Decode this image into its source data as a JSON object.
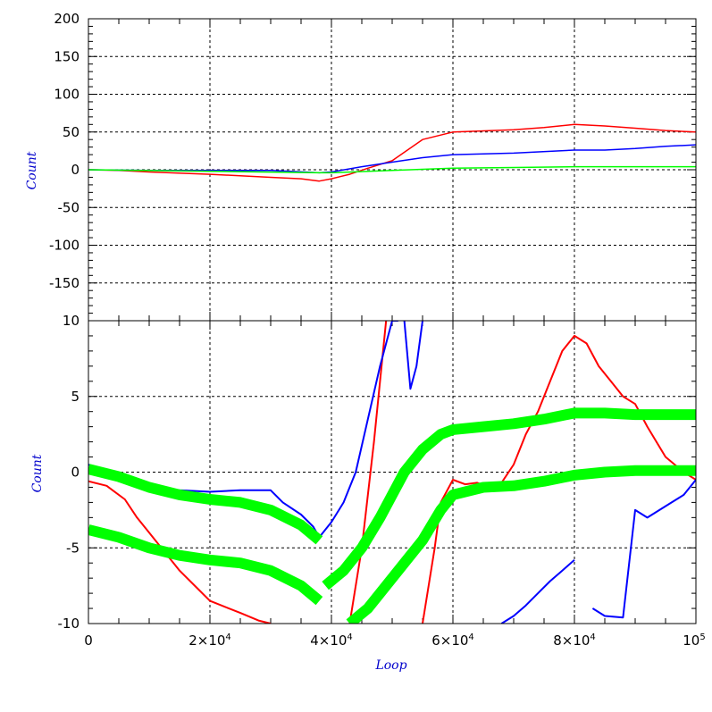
{
  "chart_data": [
    {
      "type": "line",
      "title": "",
      "xlabel": "",
      "ylabel": "Count",
      "xlim": [
        0,
        100000
      ],
      "ylim": [
        -200,
        200
      ],
      "y_ticks": [
        200,
        150,
        100,
        50,
        0,
        -50,
        -100,
        -150
      ],
      "y_tick_labels": [
        "200",
        "150",
        "100",
        "50",
        "0",
        "-50",
        "-100",
        "-150"
      ],
      "grid": true,
      "colors": {
        "red": "#ff0000",
        "blue": "#0000ff",
        "green": "#00ff00"
      },
      "series": [
        {
          "color": "#ff0000",
          "x": [
            0,
            5000,
            10000,
            20000,
            30000,
            35000,
            38000,
            40000,
            43000,
            46000,
            50000,
            55000,
            60000,
            70000,
            75000,
            80000,
            85000,
            90000,
            95000,
            100000
          ],
          "y": [
            0,
            -1,
            -3,
            -6,
            -10,
            -12,
            -15,
            -12,
            -6,
            2,
            12,
            40,
            50,
            53,
            56,
            60,
            58,
            55,
            52,
            50
          ]
        },
        {
          "color": "#0000ff",
          "x": [
            0,
            10000,
            20000,
            30000,
            38000,
            40000,
            45000,
            50000,
            55000,
            60000,
            70000,
            80000,
            85000,
            90000,
            95000,
            100000
          ],
          "y": [
            0,
            -1,
            -1,
            -1,
            -4,
            -3,
            4,
            10,
            16,
            20,
            22,
            26,
            26,
            28,
            31,
            33
          ]
        },
        {
          "color": "#00ff00",
          "x": [
            0,
            20000,
            38000,
            40000,
            50000,
            60000,
            70000,
            80000,
            90000,
            100000
          ],
          "y": [
            0,
            -2,
            -4,
            -4,
            -1,
            2,
            3,
            4,
            4,
            4
          ]
        }
      ]
    },
    {
      "type": "line",
      "title": "",
      "xlabel": "Loop",
      "ylabel": "Count",
      "xlim": [
        0,
        100000
      ],
      "ylim": [
        -10,
        10
      ],
      "x_ticks": [
        0,
        20000,
        40000,
        60000,
        80000,
        100000
      ],
      "x_tick_labels": [
        {
          "base": "0",
          "exp": ""
        },
        {
          "base": "2×10",
          "exp": "4"
        },
        {
          "base": "4×10",
          "exp": "4"
        },
        {
          "base": "6×10",
          "exp": "4"
        },
        {
          "base": "8×10",
          "exp": "4"
        },
        {
          "base": "10",
          "exp": "5"
        }
      ],
      "y_ticks": [
        10,
        5,
        0,
        -5,
        -10
      ],
      "y_tick_labels": [
        "10",
        "5",
        "0",
        "-5",
        "-10"
      ],
      "grid": true,
      "series": [
        {
          "color": "#ff0000",
          "x": [
            0,
            3000,
            6000,
            8000,
            10000,
            12000,
            15000,
            18000,
            20000,
            25000,
            28000,
            30000
          ],
          "y": [
            -0.6,
            -0.9,
            -1.8,
            -3,
            -4,
            -5,
            -6.5,
            -7.7,
            -8.5,
            -9.3,
            -9.8,
            -10
          ]
        },
        {
          "color": "#ff0000",
          "x": [
            43000,
            45000,
            47000,
            49000
          ],
          "y": [
            -10,
            -5,
            2,
            10
          ]
        },
        {
          "color": "#ff0000",
          "x": [
            55000,
            57000,
            58000,
            60000,
            62000,
            64000,
            66000,
            68000,
            70000,
            72000,
            74000,
            76000,
            78000,
            80000,
            82000,
            84000,
            86000,
            88000,
            90000,
            92000,
            95000,
            98000,
            100000
          ],
          "y": [
            -10,
            -5,
            -2,
            -0.5,
            -0.8,
            -0.7,
            -1,
            -0.7,
            0.5,
            2.5,
            4,
            6,
            8,
            9,
            8.5,
            7,
            6,
            5,
            4.5,
            3,
            1,
            0,
            -0.5
          ]
        },
        {
          "color": "#0000ff",
          "x": [
            0,
            5000,
            10000,
            15000,
            20000,
            25000,
            30000,
            32000,
            35000,
            37000,
            38000,
            40000,
            42000,
            44000,
            46000,
            48000,
            50000,
            51000
          ],
          "y": [
            0.5,
            -0.6,
            -1.0,
            -1.2,
            -1.3,
            -1.2,
            -1.2,
            -2,
            -2.8,
            -3.6,
            -4.3,
            -3.3,
            -2,
            0,
            3.5,
            7,
            10,
            10
          ]
        },
        {
          "color": "#0000ff",
          "x": [
            52000,
            53000,
            54000,
            55000
          ],
          "y": [
            10,
            5.5,
            7,
            10
          ]
        },
        {
          "color": "#0000ff",
          "x": [
            68000,
            70000,
            72000,
            74000,
            76000,
            78000,
            80000
          ],
          "y": [
            -10,
            -9.5,
            -8.8,
            -8,
            -7.2,
            -6.5,
            -5.8
          ]
        },
        {
          "color": "#0000ff",
          "x": [
            83000,
            85000,
            88000,
            90000,
            92000,
            94000,
            96000,
            98000,
            100000
          ],
          "y": [
            -9,
            -9.5,
            -9.6,
            -2.5,
            -3,
            -2.5,
            -2,
            -1.5,
            -0.5
          ]
        },
        {
          "color": "#00ff00",
          "x": [
            0,
            5000,
            10000,
            15000,
            20000,
            25000,
            30000,
            35000,
            38000
          ],
          "y": [
            0.2,
            -0.3,
            -1.0,
            -1.5,
            -1.8,
            -2.0,
            -2.5,
            -3.5,
            -4.5
          ]
        },
        {
          "color": "#00ff00",
          "x": [
            0,
            5000,
            10000,
            15000,
            20000,
            25000,
            30000,
            35000,
            38000
          ],
          "y": [
            -3.8,
            -4.3,
            -5.0,
            -5.5,
            -5.8,
            -6.0,
            -6.5,
            -7.5,
            -8.5
          ]
        },
        {
          "color": "#00ff00",
          "x": [
            39000,
            42000,
            45000,
            48000,
            50000,
            52000,
            55000,
            58000,
            60000,
            65000,
            70000,
            75000,
            80000,
            85000,
            90000,
            95000,
            100000
          ],
          "y": [
            -7.5,
            -6.5,
            -5,
            -3,
            -1.5,
            0,
            1.5,
            2.5,
            2.8,
            3,
            3.2,
            3.5,
            3.9,
            3.9,
            3.8,
            3.8,
            3.8
          ]
        },
        {
          "color": "#00ff00",
          "x": [
            43000,
            46000,
            50000,
            55000,
            58000,
            60000,
            65000,
            70000,
            75000,
            80000,
            85000,
            90000,
            95000,
            100000
          ],
          "y": [
            -10,
            -9,
            -7,
            -4.5,
            -2.5,
            -1.5,
            -1,
            -0.9,
            -0.6,
            -0.2,
            0,
            0.1,
            0.1,
            0.1
          ]
        }
      ]
    }
  ]
}
